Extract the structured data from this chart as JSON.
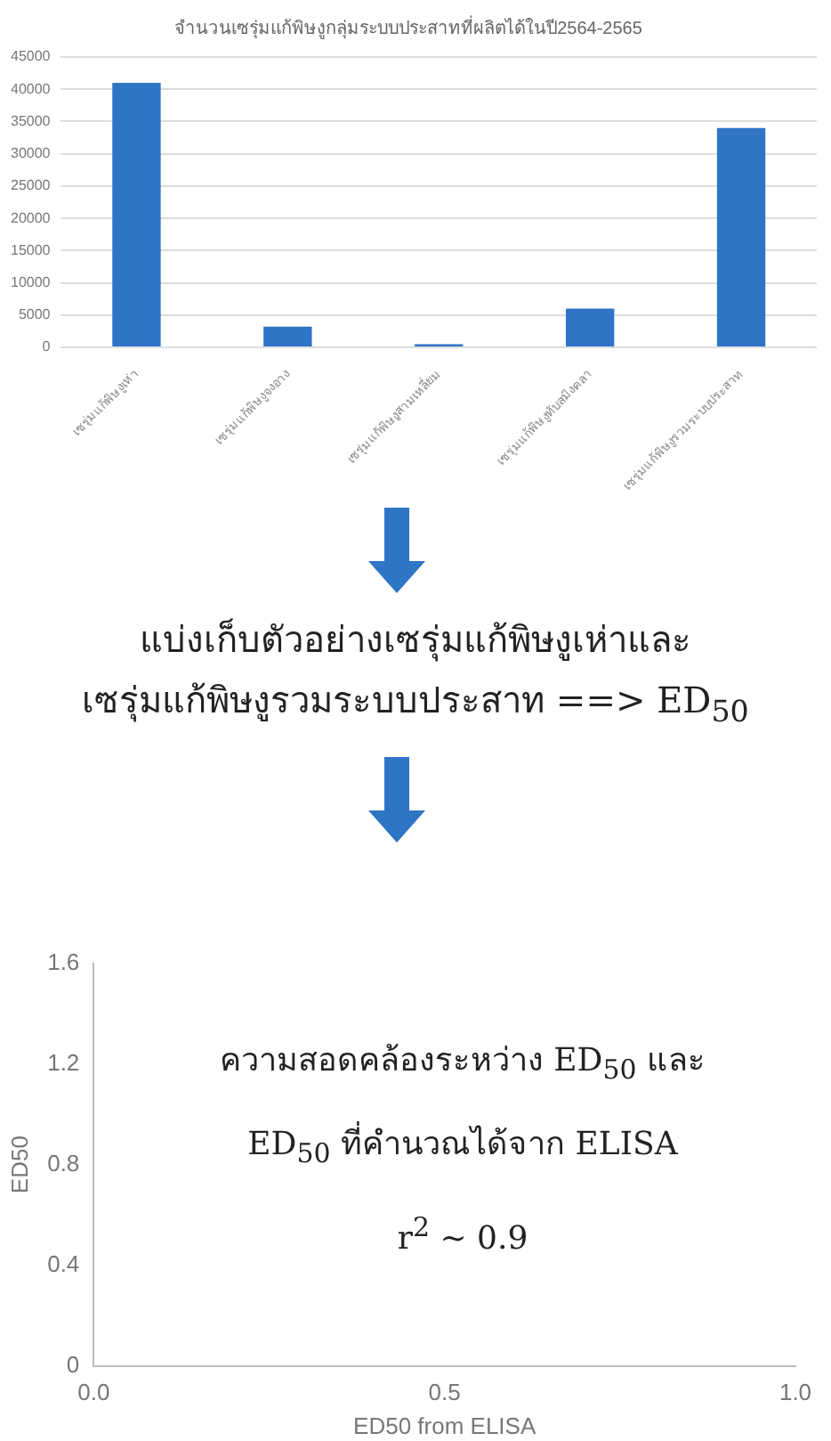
{
  "chart_data": [
    {
      "type": "bar",
      "title": "จำนวนเซรุ่มแก้พิษงูกลุ่มระบบประสาทที่ผลิตได้ในปี2564-2565",
      "categories": [
        "เซรุ่มแก้พิษงูเห่า",
        "เซรุ่มแก้พิษงูจงอาง",
        "เซรุ่มแก้พิษงูสามเหลี่ยม",
        "เซรุ่มแก้พิษงูทับสมิงคลา",
        "เซรุ่มแก้พิษงูรวมระบบประสาท"
      ],
      "values": [
        41000,
        3200,
        500,
        6000,
        34000
      ],
      "color": "#2e75c6",
      "ylim": [
        0,
        45000
      ],
      "yticks": [
        0,
        5000,
        10000,
        15000,
        20000,
        25000,
        30000,
        35000,
        40000,
        45000
      ],
      "grid": "y",
      "legend": false
    },
    {
      "type": "scatter",
      "xlabel": "ED50 from ELISA",
      "ylabel": "ED50",
      "color": "#2e75c6",
      "xlim": [
        0,
        1
      ],
      "xticks": [
        {
          "value": 0,
          "label": "0.0"
        },
        {
          "value": 0.5,
          "label": "0.5"
        },
        {
          "value": 1,
          "label": "1.0"
        }
      ],
      "ylim": [
        0,
        1.6
      ],
      "yticks": [
        0,
        0.4,
        0.8,
        1.2,
        1.6
      ],
      "grid": false,
      "legend": false,
      "annotations": [
        "แบ่งเก็บตัวอย่างเซรุ่มแก้พิษงูเห่าและ\nเซรุ่มแก้พิษงูรวมระบบประสาท ==> ED$_{50}$",
        "ความสอดคล้องระหว่าง ED$_{50}$ และ\nED$_{50}$ ที่คำนวณได้จาก ELISA\nr$^{2}$ ~ 0.9"
      ]
    }
  ]
}
